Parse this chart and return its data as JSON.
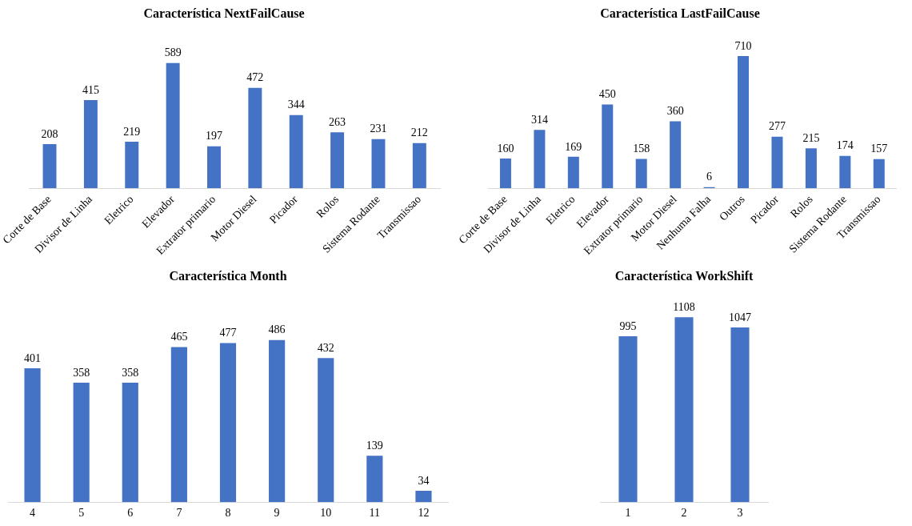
{
  "chart_data": [
    {
      "type": "bar",
      "title": "Característica NextFailCause",
      "categories": [
        "Corte de Base",
        "Divisor de Linha",
        "Eletrico",
        "Elevador",
        "Extrator primario",
        "Motor Diesel",
        "Picador",
        "Rolos",
        "Sistema Rodante",
        "Transmissao"
      ],
      "values": [
        208,
        415,
        219,
        589,
        197,
        472,
        344,
        263,
        231,
        212
      ],
      "color": "#4472c4",
      "data_labels": true,
      "grid": false,
      "legend": false,
      "tick_labels": "x"
    },
    {
      "type": "bar",
      "title": "Característica LastFailCause",
      "categories": [
        "Corte de Base",
        "Divisor de Linha",
        "Eletrico",
        "Elevador",
        "Extrator primario",
        "Motor Diesel",
        "Nenhuma Falha",
        "Outros",
        "Picador",
        "Rolos",
        "Sistema Rodante",
        "Transmissao"
      ],
      "values": [
        160,
        314,
        169,
        450,
        158,
        360,
        6,
        710,
        277,
        215,
        174,
        157
      ],
      "color": "#4472c4",
      "data_labels": true,
      "grid": false,
      "legend": false,
      "tick_labels": "x"
    },
    {
      "type": "bar",
      "title": "Característica Month",
      "categories": [
        "4",
        "5",
        "6",
        "7",
        "8",
        "9",
        "10",
        "11",
        "12"
      ],
      "values": [
        401,
        358,
        358,
        465,
        477,
        486,
        432,
        139,
        34
      ],
      "color": "#4472c4",
      "data_labels": true,
      "grid": false,
      "legend": false,
      "tick_labels": "x"
    },
    {
      "type": "bar",
      "title": "Característica WorkShift",
      "categories": [
        "1",
        "2",
        "3"
      ],
      "values": [
        995,
        1108,
        1047
      ],
      "color": "#4472c4",
      "data_labels": true,
      "grid": false,
      "legend": false,
      "tick_labels": "x"
    }
  ]
}
